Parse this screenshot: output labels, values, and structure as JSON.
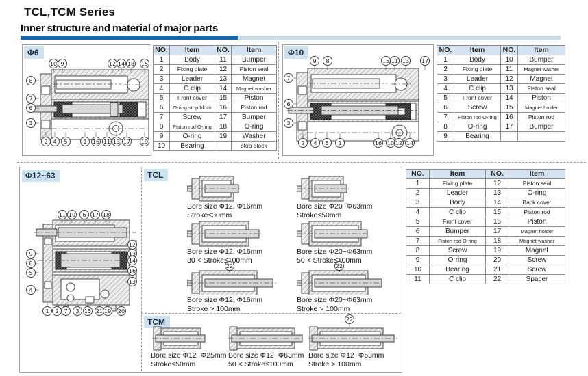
{
  "page": {
    "title": "TCL,TCM Series",
    "section_header": "Inner structure and material of major parts"
  },
  "colors": {
    "accent_blue": "#1767a9",
    "accent_blue_light": "#ccdce9",
    "label_bg": "#cfe2f0",
    "table_header_bg": "#d4e3ef"
  },
  "panel_d6": {
    "label": "Φ6",
    "balloons": {
      "top": [
        "10",
        "9",
        "12",
        "14",
        "18",
        "15"
      ],
      "left": [
        "8",
        "7",
        "6",
        "3"
      ],
      "bottom": [
        "2",
        "4",
        "5",
        "1",
        "16",
        "11",
        "13",
        "17",
        "19"
      ]
    }
  },
  "table_d6": {
    "head": [
      [
        "NO.",
        "Item",
        "NO.",
        "Item"
      ]
    ],
    "rows": [
      [
        "1",
        "Body",
        "11",
        "Bumper"
      ],
      [
        "2",
        "Fixing plate",
        "12",
        "Piston seal"
      ],
      [
        "3",
        "Leader",
        "13",
        "Magnet"
      ],
      [
        "4",
        "C clip",
        "14",
        "Magnet washer"
      ],
      [
        "5",
        "Front cover",
        "15",
        "Piston"
      ],
      [
        "6",
        "O-ring stop block",
        "16",
        "Piston rod"
      ],
      [
        "7",
        "Screw",
        "17",
        "Bumper"
      ],
      [
        "8",
        "Piston rod O-ring",
        "18",
        "O-ring"
      ],
      [
        "9",
        "O-ring",
        "19",
        "Washer"
      ],
      [
        "10",
        "Bearing",
        "",
        "stop block"
      ]
    ]
  },
  "panel_d10": {
    "label": "Φ10",
    "balloons": {
      "top": [
        "9",
        "8",
        "15",
        "11",
        "13",
        "17"
      ],
      "left": [
        "7",
        "6",
        "3"
      ],
      "bottom": [
        "2",
        "4",
        "5",
        "1",
        "16",
        "10",
        "12",
        "14"
      ]
    }
  },
  "table_d10": {
    "head": [
      [
        "NO.",
        "Item",
        "NO.",
        "Item"
      ]
    ],
    "rows": [
      [
        "1",
        "Body",
        "10",
        "Bumper"
      ],
      [
        "2",
        "Fixing plate",
        "11",
        "Magnet washer"
      ],
      [
        "3",
        "Leader",
        "12",
        "Magnet"
      ],
      [
        "4",
        "C clip",
        "13",
        "Piston seal"
      ],
      [
        "5",
        "Front cover",
        "14",
        "Piston"
      ],
      [
        "6",
        "Screw",
        "15",
        "Magnet holder"
      ],
      [
        "7",
        "Piston rod O-ring",
        "16",
        "Piston rod"
      ],
      [
        "8",
        "O-ring",
        "17",
        "Bumper"
      ],
      [
        "9",
        "Bearing",
        "",
        ""
      ]
    ]
  },
  "panel_d1263": {
    "label": "Φ12~63",
    "balloons": {
      "top": [
        "11",
        "10",
        "6",
        "17",
        "18"
      ],
      "left": [
        "9",
        "8",
        "5",
        "4"
      ],
      "right": [
        "12",
        "13",
        "14",
        "16",
        "13"
      ],
      "bottom": [
        "1",
        "2",
        "7",
        "3",
        "15",
        "21",
        "19",
        "20"
      ]
    }
  },
  "table_d1263": {
    "head": [
      [
        "NO.",
        "Item",
        "NO.",
        "Item"
      ]
    ],
    "rows": [
      [
        "1",
        "Fixing plate",
        "12",
        "Piston seal"
      ],
      [
        "2",
        "Leader",
        "13",
        "O-ring"
      ],
      [
        "3",
        "Body",
        "14",
        "Back cover"
      ],
      [
        "4",
        "C clip",
        "15",
        "Piston rod"
      ],
      [
        "5",
        "Front cover",
        "16",
        "Piston"
      ],
      [
        "6",
        "Bumper",
        "17",
        "Magnet holder"
      ],
      [
        "7",
        "Piston rod O-ring",
        "18",
        "Magnet washer"
      ],
      [
        "8",
        "Screw",
        "19",
        "Magnet"
      ],
      [
        "9",
        "O-ring",
        "20",
        "Screw"
      ],
      [
        "10",
        "Bearing",
        "21",
        "Screw"
      ],
      [
        "11",
        "C clip",
        "22",
        "Spacer"
      ]
    ]
  },
  "spacer_balloon": [
    "22"
  ],
  "tcl": {
    "label": "TCL",
    "cylinders": [
      {
        "bore": "Bore size Φ12, Φ16mm",
        "stroke": "Stroke≤30mm"
      },
      {
        "bore": "Bore size Φ20~Φ63mm",
        "stroke": "Stroke≤50mm"
      },
      {
        "bore": "Bore size Φ12, Φ16mm",
        "stroke": "30 < Stroke≤100mm"
      },
      {
        "bore": "Bore size Φ20~Φ63mm",
        "stroke": "50 < Stroke≤100mm"
      },
      {
        "bore": "Bore size Φ12, Φ16mm",
        "stroke": "Stroke > 100mm"
      },
      {
        "bore": "Bore size Φ20~Φ63mm",
        "stroke": "Stroke > 100mm"
      }
    ]
  },
  "tcm": {
    "label": "TCM",
    "cylinders": [
      {
        "bore": "Bore size Φ12~Φ25mm",
        "stroke": "Stroke≤50mm"
      },
      {
        "bore": "Bore size Φ12~Φ63mm",
        "stroke": "50 < Stroke≤100mm"
      },
      {
        "bore": "Bore size Φ12~Φ63mm",
        "stroke": "Stroke > 100mm"
      }
    ]
  }
}
